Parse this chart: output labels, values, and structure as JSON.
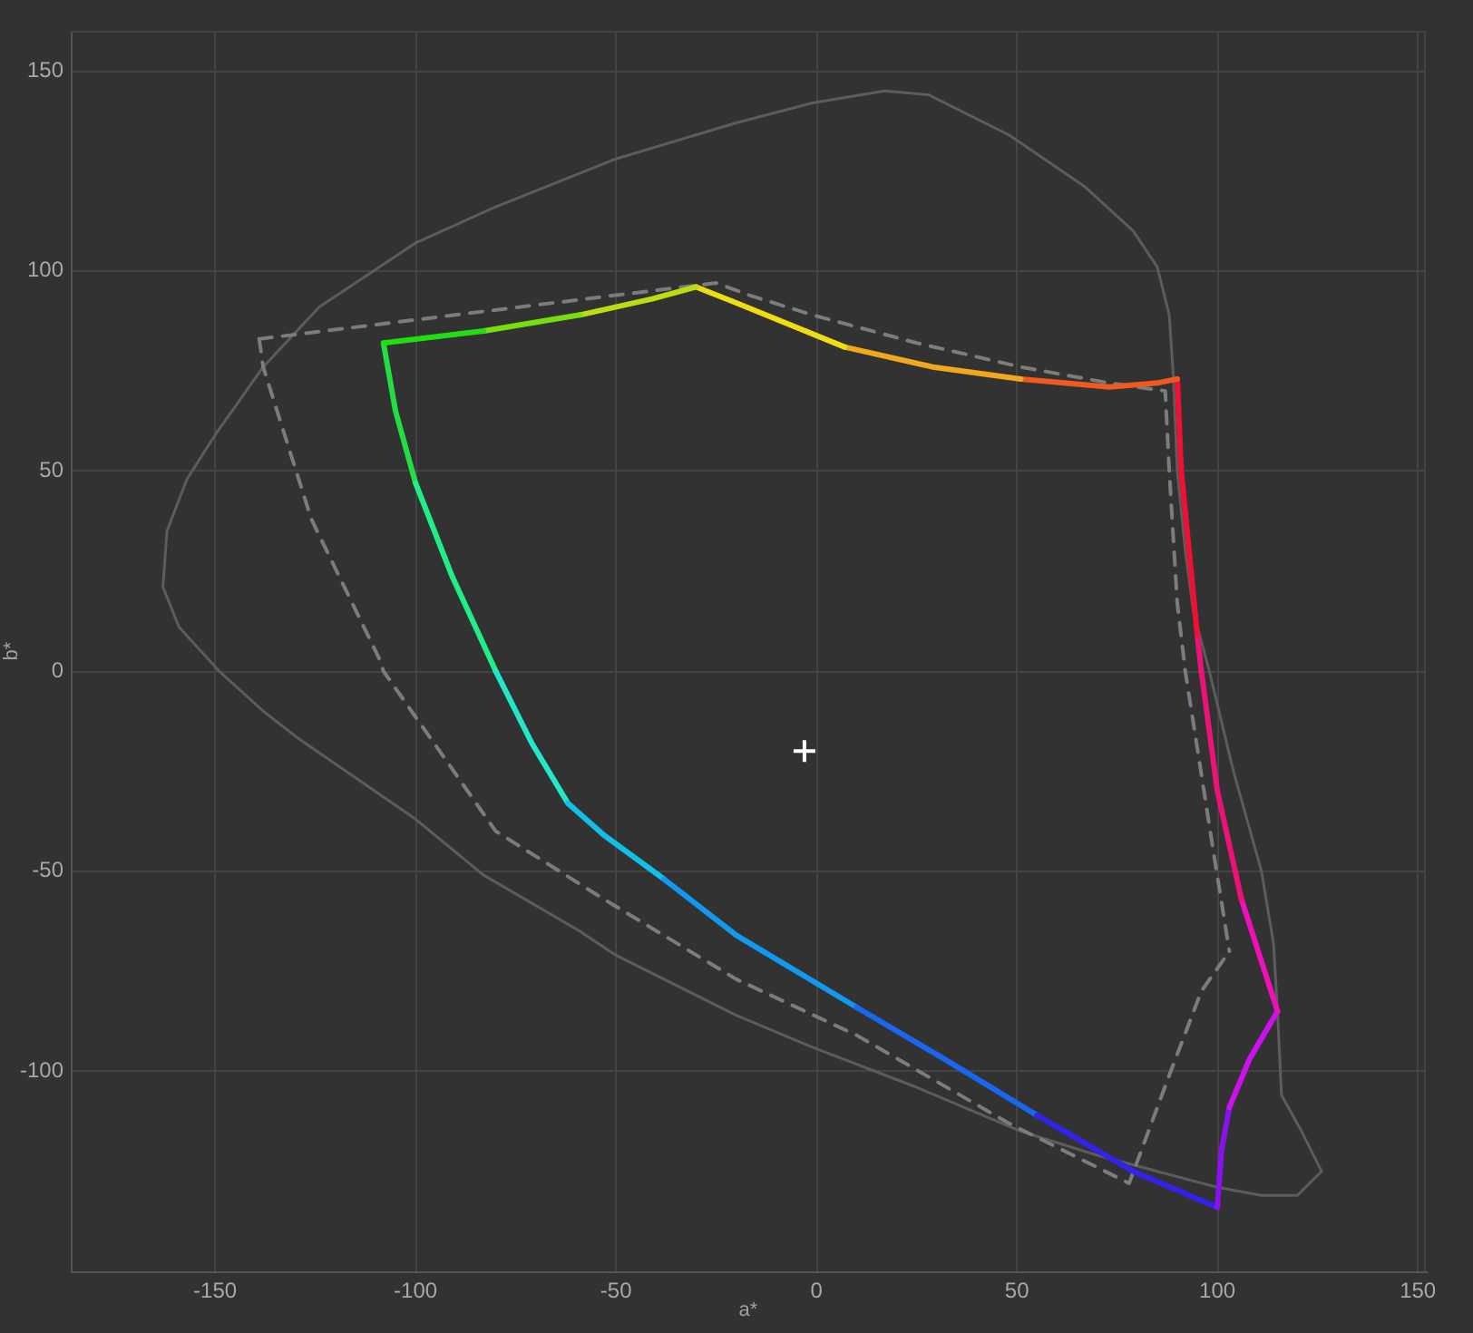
{
  "chart_data": {
    "type": "line",
    "xlabel": "a*",
    "ylabel": "b*",
    "xlim": [
      -186,
      152
    ],
    "ylim": [
      -150,
      160
    ],
    "xticks": [
      -150,
      -100,
      -50,
      0,
      50,
      100,
      150
    ],
    "yticks": [
      -100,
      -50,
      0,
      50,
      100,
      150
    ],
    "grid": true,
    "marker": "none",
    "line_style": "solid",
    "series": [
      {
        "type": "scatter",
        "color": "#ffffff",
        "marker": "cross",
        "x": [
          -3
        ],
        "values": [
          -20
        ]
      },
      {
        "color": "#22dd11",
        "x": [
          -108,
          -83
        ],
        "values": [
          82,
          85
        ]
      },
      {
        "color": "#77dd11",
        "x": [
          -83,
          -59
        ],
        "values": [
          85,
          89
        ]
      },
      {
        "color": "#bbdd11",
        "x": [
          -59,
          -41,
          -30
        ],
        "values": [
          89,
          93,
          96
        ]
      },
      {
        "color": "#eedd11",
        "x": [
          -30,
          -20,
          7
        ],
        "values": [
          96,
          92,
          81
        ]
      },
      {
        "color": "#f2a81c",
        "x": [
          7,
          29,
          51
        ],
        "values": [
          81,
          76,
          73
        ]
      },
      {
        "color": "#f05a1e",
        "x": [
          51,
          73,
          85,
          90
        ],
        "values": [
          73,
          71,
          72,
          73
        ]
      },
      {
        "color": "#ee1133",
        "x": [
          90,
          91,
          95
        ],
        "values": [
          73,
          50,
          9
        ]
      },
      {
        "color": "#ee1177",
        "x": [
          95,
          96,
          100,
          106
        ],
        "values": [
          9,
          0,
          -30,
          -57
        ]
      },
      {
        "color": "#ee11bb",
        "x": [
          106,
          115
        ],
        "values": [
          -57,
          -85
        ]
      },
      {
        "color": "#cc11ee",
        "x": [
          115,
          108,
          103
        ],
        "values": [
          -85,
          -97,
          -109
        ]
      },
      {
        "color": "#8811ee",
        "x": [
          103,
          101,
          100
        ],
        "values": [
          -109,
          -120,
          -134
        ]
      },
      {
        "color": "#3322ee",
        "x": [
          100,
          79,
          55
        ],
        "values": [
          -134,
          -125,
          -111
        ]
      },
      {
        "color": "#1a66ee",
        "x": [
          55,
          32,
          10
        ],
        "values": [
          -111,
          -97,
          -84
        ]
      },
      {
        "color": "#1199ee",
        "x": [
          10,
          -20,
          -38
        ],
        "values": [
          -84,
          -66,
          -52
        ]
      },
      {
        "color": "#11c0e6",
        "x": [
          -38,
          -53,
          -62
        ],
        "values": [
          -52,
          -41,
          -33
        ]
      },
      {
        "color": "#22e8c8",
        "x": [
          -62,
          -71,
          -80
        ],
        "values": [
          -33,
          -18,
          0
        ]
      },
      {
        "color": "#22ee88",
        "x": [
          -80,
          -91,
          -100
        ],
        "values": [
          0,
          24,
          47
        ]
      },
      {
        "color": "#22dd44",
        "x": [
          -100,
          -105,
          -108
        ],
        "values": [
          47,
          65,
          82
        ]
      },
      {
        "color": "#7c7c7c",
        "line_style": "dashed",
        "x": [
          -139,
          -25,
          -17,
          -1,
          25,
          51,
          73,
          87,
          88,
          90,
          92,
          99,
          103
        ],
        "values": [
          83,
          97,
          94,
          89,
          82,
          76,
          72,
          70,
          50,
          17,
          0,
          -45,
          -70
        ]
      },
      {
        "color": "#7c7c7c",
        "line_style": "dashed",
        "x": [
          -139,
          -138,
          -126,
          -109,
          -108,
          -80,
          -53,
          -20,
          10,
          48,
          78,
          88,
          96,
          103
        ],
        "values": [
          83,
          76,
          38,
          3,
          0,
          -40,
          -57,
          -77,
          -91,
          -113,
          -128,
          -101,
          -80,
          -70
        ]
      },
      {
        "color": "#5c5c5c",
        "x": [
          -163,
          -162,
          -157,
          -150,
          -138,
          -124,
          -100,
          -80,
          -50,
          -20,
          -1,
          17,
          28,
          48,
          67,
          79,
          85,
          88,
          89,
          90,
          92,
          94,
          98,
          104,
          111,
          114,
          115,
          116,
          121,
          126
        ],
        "values": [
          21,
          35,
          48,
          59,
          76,
          91,
          107,
          116,
          128,
          137,
          142,
          145,
          144,
          134,
          121,
          110,
          101,
          89,
          74,
          50,
          30,
          15,
          0,
          -25,
          -50,
          -68,
          -85,
          -106,
          -115,
          -125
        ]
      },
      {
        "color": "#5c5c5c",
        "x": [
          -163,
          -159,
          -149,
          -138,
          -129,
          -100,
          -83,
          -59,
          -50,
          -20,
          -1,
          25,
          51,
          70,
          85,
          100,
          111,
          120,
          126
        ],
        "values": [
          21,
          11,
          0,
          -10,
          -17,
          -37,
          -51,
          -65,
          -71,
          -86,
          -94,
          -104,
          -115,
          -121,
          -125,
          -129,
          -131,
          -131,
          -125
        ]
      }
    ]
  }
}
